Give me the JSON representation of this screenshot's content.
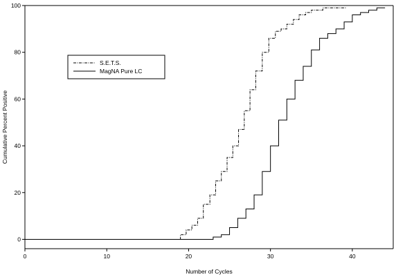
{
  "chart_data": {
    "type": "line",
    "title": "",
    "xlabel": "Number of Cycles",
    "ylabel": "Cumulative Percent Positive",
    "xlim": [
      0,
      45
    ],
    "ylim": [
      -4,
      100
    ],
    "x_ticks": [
      0,
      10,
      20,
      30,
      40
    ],
    "y_ticks": [
      0,
      20,
      40,
      60,
      80,
      100
    ],
    "grid": false,
    "legend_position": "top-left",
    "step": true,
    "series": [
      {
        "name": "S.E.T.S.",
        "style": "dash-dot",
        "color": "#000000",
        "x": [
          0,
          19,
          19.7,
          20.4,
          21.1,
          21.8,
          22.6,
          23.3,
          24,
          24.7,
          25.4,
          26.1,
          26.8,
          27.5,
          28.2,
          29,
          29.8,
          30.6,
          31.3,
          32,
          32.8,
          33.5,
          34.3,
          35,
          35.7,
          36.4,
          37.2,
          38,
          39.2
        ],
        "y": [
          0,
          2,
          4,
          6,
          9,
          15,
          19,
          25,
          29,
          35,
          40,
          47,
          55,
          64,
          72,
          80,
          86,
          89,
          90,
          92,
          94,
          96,
          97,
          98,
          98,
          99,
          99,
          99,
          99
        ]
      },
      {
        "name": "MagNA Pure LC",
        "style": "solid",
        "color": "#000000",
        "x": [
          0,
          23,
          24,
          25,
          26,
          27,
          28,
          29,
          30,
          31,
          32,
          33,
          34,
          35,
          36,
          37,
          38,
          39,
          40,
          41,
          42,
          43,
          44
        ],
        "y": [
          0,
          1,
          2,
          5,
          9,
          13,
          19,
          29,
          40,
          51,
          60,
          68,
          74,
          81,
          86,
          88,
          90,
          93,
          96,
          97,
          98,
          99,
          99
        ]
      }
    ]
  }
}
